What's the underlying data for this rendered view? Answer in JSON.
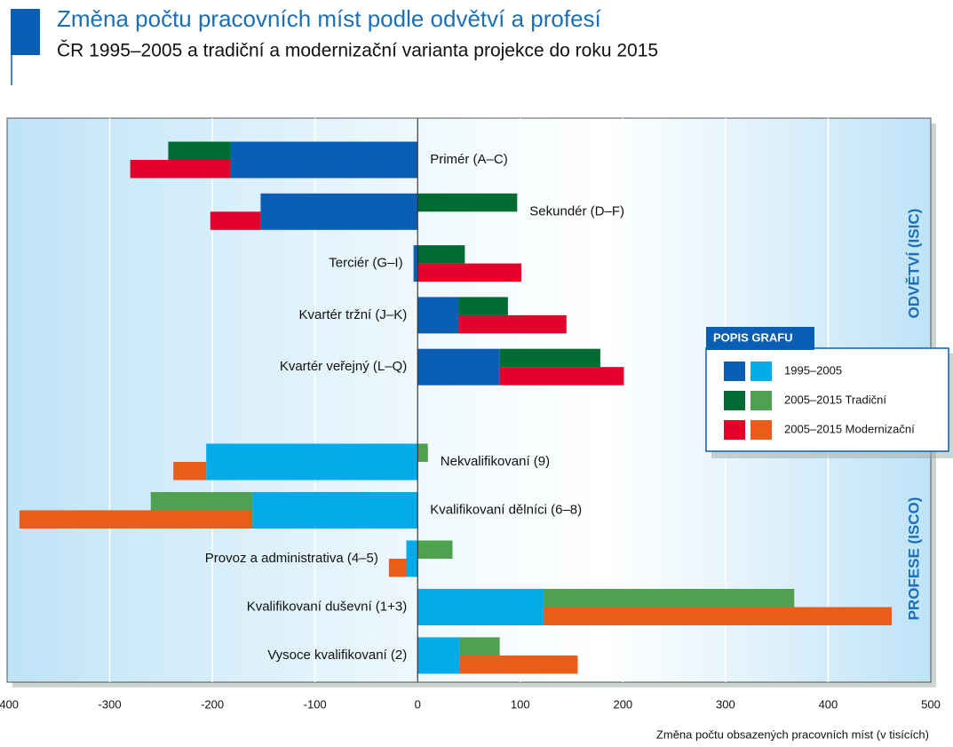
{
  "chart_data": {
    "type": "bar",
    "orientation": "horizontal",
    "stacking": "diverging",
    "title": "Změna počtu pracovních míst podle odvětví a profesí",
    "subtitle": "ČR 1995–2005 a tradiční a modernizační varianta projekce do roku 2015",
    "xlabel": "Změna počtu obsazených pracovních míst (v tisících)",
    "xlim": [
      -400,
      500
    ],
    "xticks": [
      -400,
      -300,
      -200,
      -100,
      0,
      100,
      200,
      300,
      400,
      500
    ],
    "grid": true,
    "legend": {
      "title": "POPIS GRAFU",
      "position": "right"
    },
    "series": [
      {
        "name": "1995–2005",
        "colors": [
          "#0a5fb4",
          "#05aae8"
        ]
      },
      {
        "name": "2005–2015 Tradiční",
        "colors": [
          "#006b33",
          "#4ea24f"
        ]
      },
      {
        "name": "2005–2015 Modernizační",
        "colors": [
          "#e4002b",
          "#e85d1a"
        ]
      }
    ],
    "groups": [
      {
        "label": "ODVĚTVÍ (ISIC)",
        "categories": [
          "Primér (A–C)",
          "Sekundér (D–F)",
          "Terciér (G–I)",
          "Kvartér tržní (J–K)",
          "Kvartér veřejný (L–Q)"
        ],
        "values": [
          [
            -182,
            -153,
            -4,
            40,
            80
          ],
          [
            -61,
            97,
            46,
            48,
            98
          ],
          [
            -98,
            -49,
            101,
            105,
            121
          ]
        ]
      },
      {
        "label": "PROFESE (ISCO)",
        "categories": [
          "Nekvalifikovaní (9)",
          "Kvalifikovaní dělníci (6–8)",
          "Provoz a administrativa (4–5)",
          "Kvalifikovaní duševní (1+3)",
          "Vysoce kvalifikovaní (2)"
        ],
        "values": [
          [
            -206,
            -161,
            -11,
            123,
            41
          ],
          [
            10,
            -99,
            34,
            244,
            39
          ],
          [
            -32,
            -227,
            -17,
            339,
            115
          ]
        ]
      }
    ]
  }
}
